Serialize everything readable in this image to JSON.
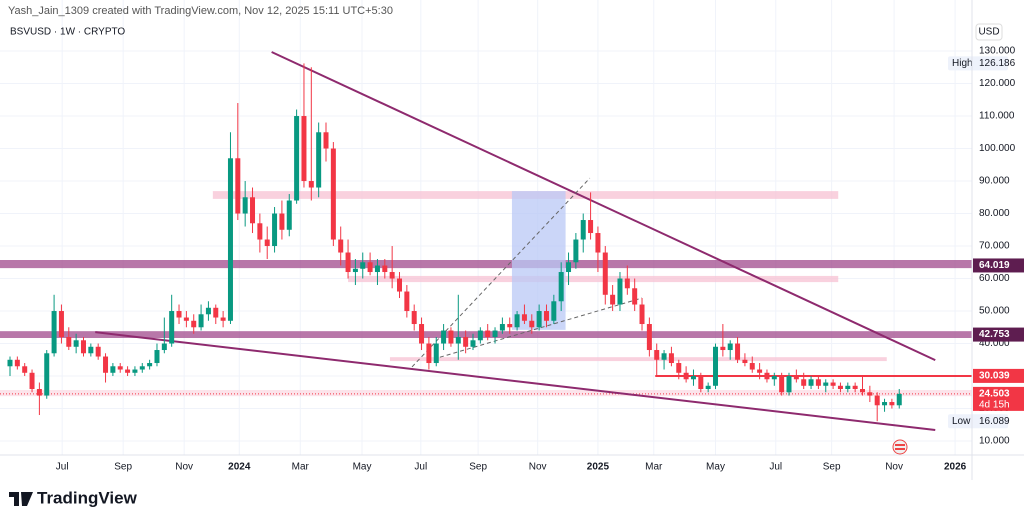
{
  "header": {
    "credit": "Yash_Jain_1309 created with TradingView.com, Nov 12, 2025 15:11 UTC+5:30",
    "symbol": "BSVUSD · 1W · CRYPTO",
    "currency": "USD"
  },
  "chart_data": {
    "type": "candlestick",
    "up_color": "#089981",
    "down_color": "#f23645",
    "candles": [
      [
        33,
        36,
        30,
        35
      ],
      [
        35,
        36,
        32,
        33
      ],
      [
        33,
        34,
        30,
        31
      ],
      [
        31,
        32,
        25,
        26
      ],
      [
        26,
        28,
        18,
        24
      ],
      [
        24,
        38,
        23,
        37
      ],
      [
        37,
        55,
        36,
        50
      ],
      [
        50,
        52,
        40,
        42
      ],
      [
        42,
        45,
        38,
        39
      ],
      [
        39,
        43,
        37,
        41
      ],
      [
        41,
        42,
        36,
        37
      ],
      [
        37,
        40,
        36,
        39
      ],
      [
        39,
        40,
        35,
        36
      ],
      [
        36,
        37,
        28,
        31
      ],
      [
        31,
        34,
        30,
        33
      ],
      [
        33,
        34,
        31,
        32
      ],
      [
        32,
        33,
        30,
        31
      ],
      [
        31,
        33,
        30,
        32
      ],
      [
        32,
        34,
        31,
        33
      ],
      [
        33,
        35,
        32,
        34
      ],
      [
        34,
        40,
        33,
        38
      ],
      [
        38,
        48,
        37,
        40
      ],
      [
        40,
        55,
        39,
        50
      ],
      [
        50,
        52,
        46,
        48
      ],
      [
        48,
        50,
        45,
        47
      ],
      [
        47,
        49,
        43,
        45
      ],
      [
        45,
        52,
        44,
        49
      ],
      [
        49,
        53,
        47,
        51
      ],
      [
        51,
        52,
        46,
        48
      ],
      [
        48,
        50,
        45,
        47
      ],
      [
        47,
        105,
        46,
        97
      ],
      [
        97,
        114,
        78,
        80
      ],
      [
        80,
        90,
        76,
        85
      ],
      [
        85,
        88,
        74,
        77
      ],
      [
        77,
        80,
        68,
        72
      ],
      [
        72,
        76,
        66,
        70
      ],
      [
        70,
        82,
        68,
        80
      ],
      [
        80,
        84,
        72,
        75
      ],
      [
        75,
        86,
        73,
        84
      ],
      [
        84,
        112,
        83,
        110
      ],
      [
        110,
        126.186,
        88,
        90
      ],
      [
        90,
        125,
        84,
        88
      ],
      [
        88,
        108,
        85,
        105
      ],
      [
        105,
        108,
        96,
        100
      ],
      [
        100,
        102,
        70,
        72
      ],
      [
        72,
        76,
        64,
        68
      ],
      [
        68,
        72,
        60,
        62
      ],
      [
        62,
        66,
        58,
        63
      ],
      [
        63,
        68,
        60,
        65
      ],
      [
        65,
        68,
        61,
        62
      ],
      [
        62,
        66,
        58,
        64
      ],
      [
        64,
        66,
        60,
        62
      ],
      [
        62,
        70,
        57,
        60
      ],
      [
        60,
        62,
        54,
        56
      ],
      [
        56,
        58,
        48,
        50
      ],
      [
        50,
        52,
        44,
        46
      ],
      [
        46,
        48,
        38,
        40
      ],
      [
        40,
        42,
        32,
        34
      ],
      [
        34,
        42,
        33,
        40
      ],
      [
        40,
        46,
        38,
        44
      ],
      [
        44,
        45,
        39,
        40
      ],
      [
        40,
        55,
        35,
        42
      ],
      [
        42,
        44,
        37,
        39
      ],
      [
        39,
        43,
        38,
        41
      ],
      [
        41,
        45,
        40,
        44
      ],
      [
        44,
        46,
        41,
        42
      ],
      [
        42,
        45,
        40,
        44
      ],
      [
        44,
        48,
        43,
        46
      ],
      [
        46,
        48,
        43,
        45
      ],
      [
        45,
        50,
        44,
        49
      ],
      [
        49,
        52,
        46,
        47
      ],
      [
        47,
        49,
        43,
        45
      ],
      [
        45,
        52,
        44,
        50
      ],
      [
        50,
        52,
        45,
        47
      ],
      [
        47,
        55,
        46,
        53
      ],
      [
        53,
        65,
        50,
        62
      ],
      [
        62,
        68,
        58,
        65
      ],
      [
        65,
        74,
        63,
        72
      ],
      [
        72,
        80,
        68,
        78
      ],
      [
        78,
        86.5,
        72,
        74
      ],
      [
        74,
        76,
        62,
        68
      ],
      [
        68,
        70,
        52,
        55
      ],
      [
        55,
        58,
        50,
        52
      ],
      [
        52,
        62,
        50,
        60
      ],
      [
        60,
        64,
        55,
        57
      ],
      [
        57,
        60,
        50,
        52
      ],
      [
        52,
        54,
        44,
        46
      ],
      [
        46,
        48,
        36,
        38
      ],
      [
        38,
        40,
        30,
        35
      ],
      [
        35,
        38,
        32,
        37
      ],
      [
        37,
        39,
        33,
        34
      ],
      [
        34,
        35,
        29,
        31
      ],
      [
        31,
        33,
        28,
        29
      ],
      [
        29,
        32,
        27,
        30
      ],
      [
        30,
        31,
        25,
        26
      ],
      [
        26,
        28,
        25,
        27
      ],
      [
        27,
        40,
        26,
        39
      ],
      [
        39,
        46,
        36,
        38
      ],
      [
        38,
        41,
        35,
        40
      ],
      [
        40,
        42,
        34,
        35
      ],
      [
        35,
        37,
        33,
        34
      ],
      [
        34,
        36,
        31,
        32
      ],
      [
        32,
        34,
        29,
        31
      ],
      [
        31,
        32,
        28,
        29
      ],
      [
        29,
        31,
        27,
        30
      ],
      [
        30,
        31,
        24,
        25
      ],
      [
        25,
        31,
        24,
        30
      ],
      [
        30,
        32,
        28,
        29
      ],
      [
        29,
        31,
        26,
        27
      ],
      [
        27,
        30,
        26,
        29
      ],
      [
        29,
        30,
        26,
        27
      ],
      [
        27,
        29,
        25,
        28
      ],
      [
        28,
        29,
        26,
        27
      ],
      [
        27,
        28,
        25,
        26
      ],
      [
        26,
        28,
        25,
        27
      ],
      [
        27,
        28,
        25,
        26
      ],
      [
        26,
        30,
        24,
        25
      ],
      [
        25,
        27,
        22,
        24
      ],
      [
        24,
        25,
        16.089,
        21
      ],
      [
        21,
        23,
        19,
        22
      ],
      [
        22,
        23,
        20,
        21
      ],
      [
        21,
        26,
        20,
        24.503
      ]
    ],
    "xlim": [
      -1.36,
      130.9
    ],
    "ylim": [
      5.7,
      145.7
    ],
    "xticks": [
      {
        "value": 7.1,
        "label": "Jul"
      },
      {
        "value": 15.4,
        "label": "Sep"
      },
      {
        "value": 23.7,
        "label": "Nov"
      },
      {
        "value": 31.2,
        "label": "2024"
      },
      {
        "value": 39.5,
        "label": "Mar"
      },
      {
        "value": 47.9,
        "label": "May"
      },
      {
        "value": 55.9,
        "label": "Jul"
      },
      {
        "value": 63.7,
        "label": "Sep"
      },
      {
        "value": 71.8,
        "label": "Nov"
      },
      {
        "value": 80,
        "label": "2025"
      },
      {
        "value": 87.6,
        "label": "Mar"
      },
      {
        "value": 96,
        "label": "May"
      },
      {
        "value": 104.2,
        "label": "Jul"
      },
      {
        "value": 111.8,
        "label": "Sep"
      },
      {
        "value": 120.3,
        "label": "Nov"
      },
      {
        "value": 128.6,
        "label": "2026"
      }
    ],
    "yticks": [
      {
        "value": 130,
        "label": "130.000"
      },
      {
        "value": 120,
        "label": "120.000"
      },
      {
        "value": 110,
        "label": "110.000"
      },
      {
        "value": 100,
        "label": "100.000"
      },
      {
        "value": 90,
        "label": "90.000"
      },
      {
        "value": 80,
        "label": "80.000"
      },
      {
        "value": 70,
        "label": "70.000"
      },
      {
        "value": 60,
        "label": "60.000"
      },
      {
        "value": 50,
        "label": "50.000"
      },
      {
        "value": 40,
        "label": "40.000"
      },
      {
        "value": 30,
        "label": "30.000"
      },
      {
        "value": 20,
        "label": "20.000"
      },
      {
        "value": 10,
        "label": "10.000"
      }
    ],
    "zones": [
      {
        "lo": 84.5,
        "hi": 86.9,
        "from": 27.6,
        "to": 112.7,
        "color": "#f7c2d3"
      },
      {
        "lo": 58.9,
        "hi": 60.8,
        "from": 46,
        "to": 112.7,
        "color": "#f7c2d3"
      },
      {
        "lo": 34.6,
        "hi": 35.8,
        "from": 51.7,
        "to": 119.3,
        "color": "#f7c2d3"
      },
      {
        "lo": 23.8,
        "hi": 25.7,
        "color": "#fbd9e3"
      },
      {
        "lo": 63.2,
        "hi": 65.7,
        "color": "#a04a8c"
      },
      {
        "lo": 41.7,
        "hi": 43.8,
        "color": "#a04a8c"
      },
      {
        "lo": 44.2,
        "hi": 86.9,
        "from": 68.3,
        "to": 75.6,
        "color": "#b9c8f5"
      }
    ],
    "trendlines": [
      {
        "x": [
          35.6,
          125.9
        ],
        "y": [
          129.7,
          34.9
        ],
        "color": "#8e2a6e",
        "style": "solid"
      },
      {
        "x": [
          11.6,
          125.9
        ],
        "y": [
          43.5,
          13.4
        ],
        "color": "#8e2a6e",
        "style": "solid"
      },
      {
        "x": [
          54.7,
          78.9
        ],
        "y": [
          32.8,
          90.9
        ],
        "color": "#666666",
        "style": "dashed"
      },
      {
        "x": [
          58.5,
          86
        ],
        "y": [
          35.8,
          54
        ],
        "color": "#666666",
        "style": "dashed"
      },
      {
        "x": [
          87.8,
          130.9
        ],
        "y": [
          30,
          30
        ],
        "color": "#f23645",
        "style": "solid"
      }
    ],
    "price_labels": [
      {
        "value": 64.019,
        "label": "64.019",
        "color": "#5e1d50"
      },
      {
        "value": 42.753,
        "label": "42.753",
        "color": "#5e1d50"
      },
      {
        "value": 30.039,
        "label": "30.039",
        "color": "#f23645"
      },
      {
        "value": 24.503,
        "label": "24.503",
        "countdown": "4d 15h",
        "color": "#f23645"
      }
    ],
    "high": {
      "label": "High",
      "value": 126.186
    },
    "low": {
      "label": "Low",
      "value": 16.089
    }
  },
  "footer": {
    "brand": "TradingView"
  }
}
